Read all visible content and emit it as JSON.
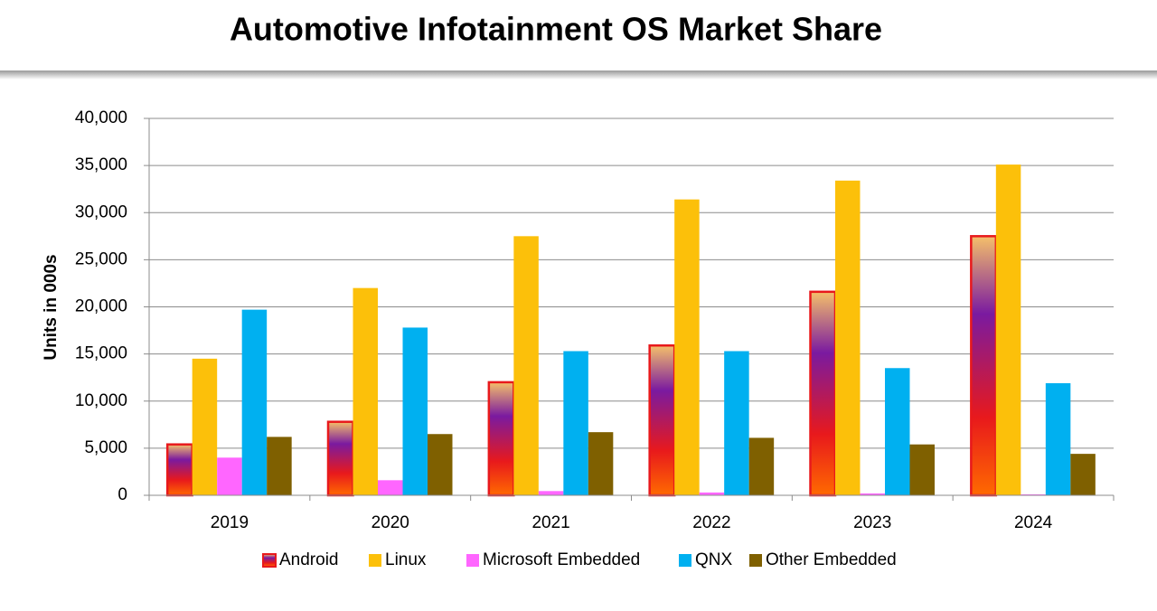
{
  "chart_data": {
    "type": "bar",
    "title": "Automotive Infotainment OS Market Share",
    "y_label": "Units in 000s",
    "categories": [
      "2019",
      "2020",
      "2021",
      "2022",
      "2023",
      "2024"
    ],
    "series": [
      {
        "name": "Android",
        "color": "#e8191c",
        "values": [
          5400,
          7800,
          12000,
          15900,
          21600,
          27500
        ]
      },
      {
        "name": "Linux",
        "color": "#fcc00a",
        "values": [
          14500,
          22000,
          27500,
          31400,
          33400,
          35100
        ]
      },
      {
        "name": "Microsoft Embedded",
        "color": "#ff66ff",
        "values": [
          4000,
          1600,
          450,
          300,
          200,
          100
        ]
      },
      {
        "name": "QNX",
        "color": "#00b0f0",
        "values": [
          19700,
          17800,
          15300,
          15300,
          13500,
          11900
        ]
      },
      {
        "name": "Other Embedded",
        "color": "#7f6000",
        "values": [
          6200,
          6500,
          6700,
          6100,
          5400,
          4400
        ]
      }
    ],
    "ylim": [
      0,
      40000
    ],
    "yticks": [
      0,
      {
        "value": 5000,
        "label": "5,000"
      },
      {
        "value": 10000,
        "label": "10,000"
      },
      {
        "value": 15000,
        "label": "15,000"
      },
      {
        "value": 20000,
        "label": "20,000"
      },
      {
        "value": 25000,
        "label": "25,000"
      },
      {
        "value": 30000,
        "label": "30,000"
      },
      {
        "value": 35000,
        "label": "35,000"
      },
      {
        "value": 40000,
        "label": "40,000"
      }
    ],
    "grid": true,
    "legend": "bottom"
  }
}
